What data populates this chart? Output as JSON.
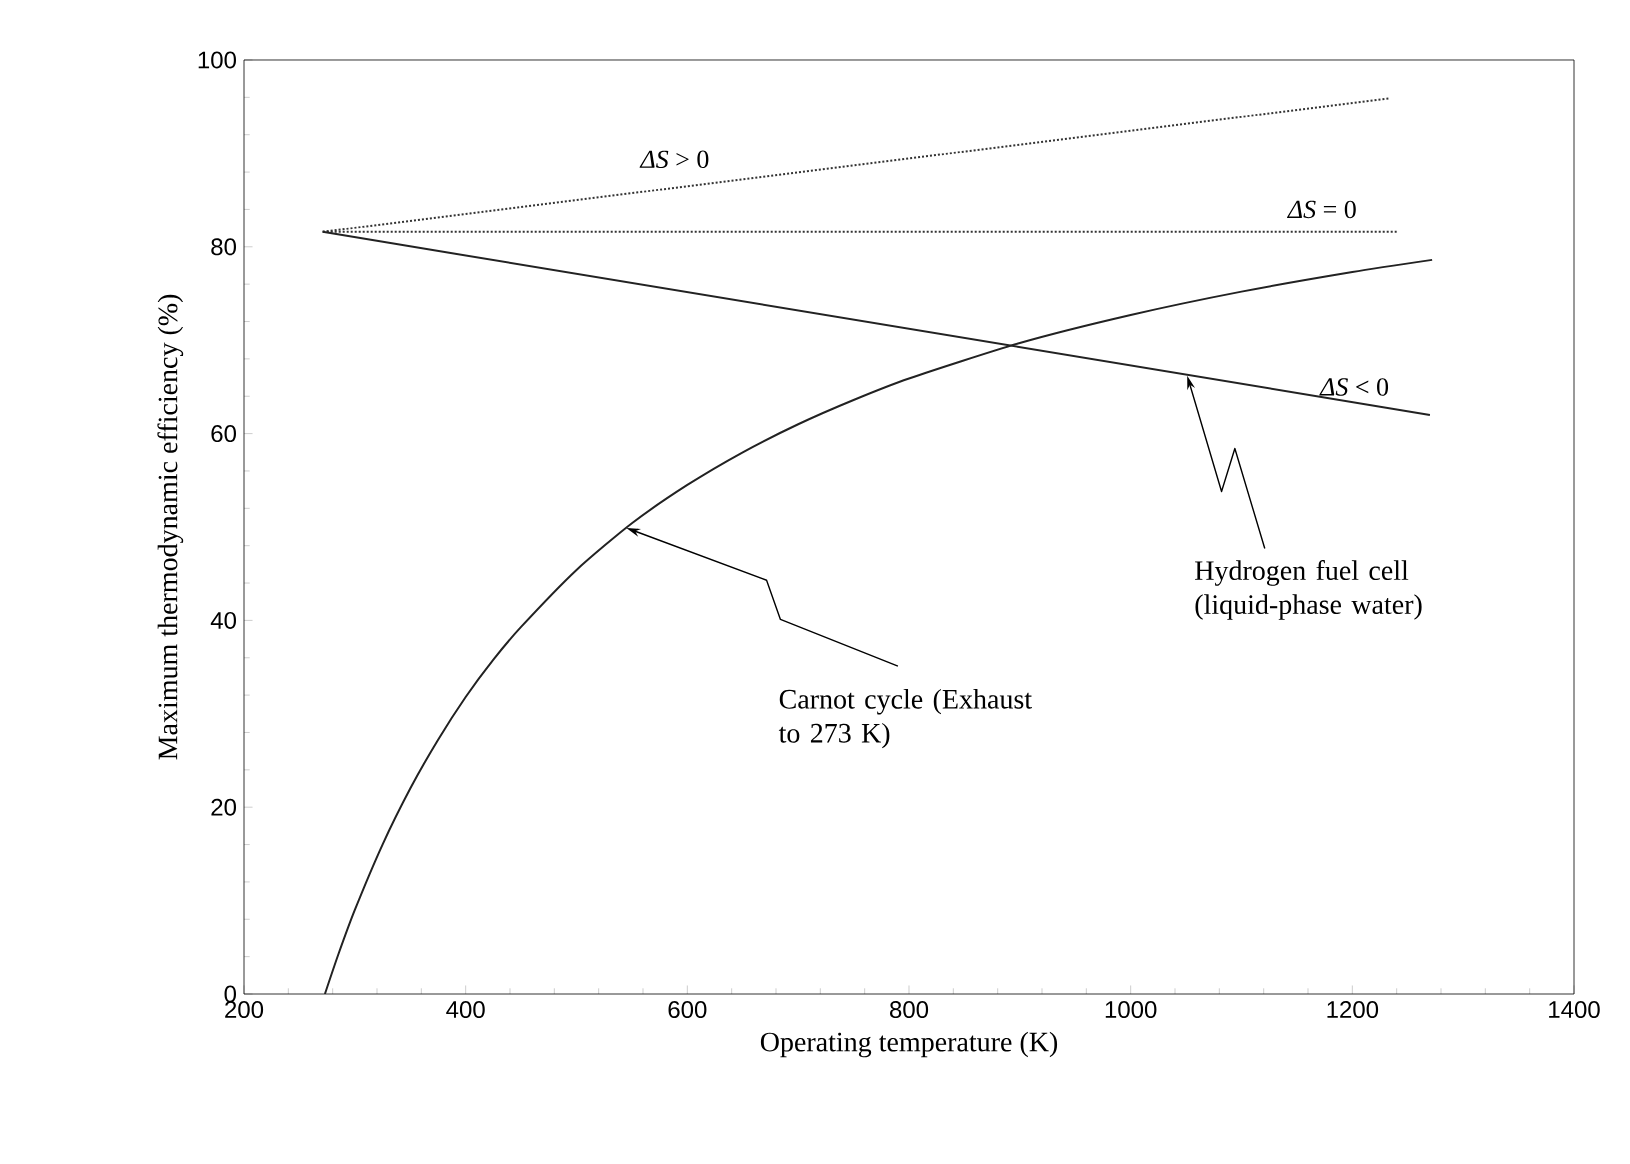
{
  "chart_data": {
    "type": "line",
    "xlabel": "Operating temperature (K)",
    "ylabel": "Maximum thermodynamic efficiency (%)",
    "xlim": [
      200,
      1400
    ],
    "ylim": [
      0,
      100
    ],
    "xticks": [
      200,
      400,
      600,
      800,
      1000,
      1200,
      1400
    ],
    "yticks": [
      0,
      20,
      40,
      60,
      80,
      100
    ],
    "grid": false,
    "series": [
      {
        "name": "*ΔS* > 0",
        "color": "#333333",
        "line_style": "dotted",
        "x": [
          271,
          1234
        ],
        "values": [
          81.6,
          95.9
        ]
      },
      {
        "name": "*ΔS* = 0",
        "color": "#333333",
        "line_style": "dotted",
        "x": [
          271,
          1240
        ],
        "values": [
          81.6,
          81.6
        ]
      },
      {
        "name": "*ΔS* < 0",
        "color": "#222222",
        "line_style": "solid",
        "x": [
          271,
          1270
        ],
        "values": [
          81.6,
          62
        ]
      },
      {
        "color": "#222222",
        "line_style": "solid",
        "x": [
          273,
          285,
          300,
          325,
          350,
          375,
          400,
          425,
          450,
          500,
          550,
          600,
          650,
          700,
          750,
          800,
          900,
          1000,
          1100,
          1200,
          1272
        ],
        "values": [
          0,
          4.2,
          9,
          16,
          22,
          27.2,
          31.8,
          35.8,
          39.3,
          45.4,
          50.4,
          54.5,
          58,
          61,
          63.6,
          65.9,
          69.7,
          72.7,
          75.2,
          77.3,
          78.6
        ]
      }
    ],
    "annotations": [
      {
        "text": "Carnot cycle (Exhaust to 273 K)",
        "x": 545,
        "y": 49.9
      },
      {
        "text": "Hydrogen fuel cell (liquid-phase water)",
        "x": 1051,
        "y": 66.2
      }
    ]
  }
}
